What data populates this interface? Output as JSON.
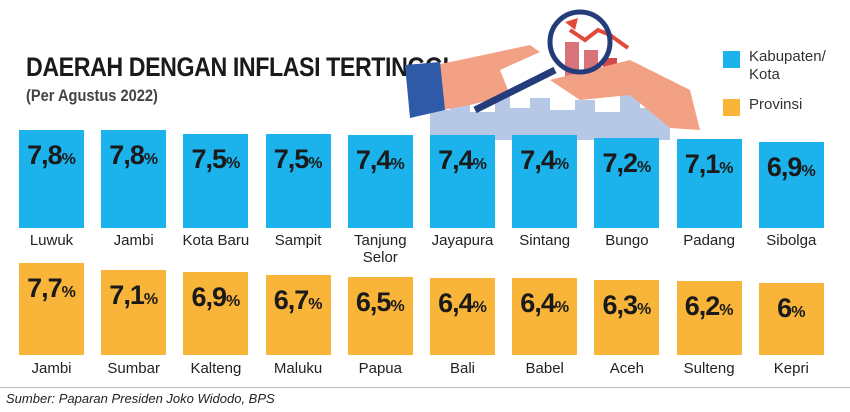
{
  "title": "DAERAH DENGAN INFLASI TERTINGGI",
  "subtitle": "(Per Agustus 2022)",
  "legend": {
    "kabupaten": "Kabupaten/ Kota",
    "provinsi": "Provinsi"
  },
  "source": "Sumber: Paparan Presiden Joko Widodo, BPS",
  "colors": {
    "kabupaten": "#1cb2ec",
    "provinsi": "#f9b43a"
  },
  "chart_data": [
    {
      "type": "bar",
      "series_name": "Kabupaten/Kota",
      "unit": "%",
      "categories": [
        "Luwuk",
        "Jambi",
        "Kota Baru",
        "Sampit",
        "Tanjung Selor",
        "Jayapura",
        "Sintang",
        "Bungo",
        "Padang",
        "Sibolga"
      ],
      "labels": [
        "7,8",
        "7,8",
        "7,5",
        "7,5",
        "7,4",
        "7,4",
        "7,4",
        "7,2",
        "7,1",
        "6,9"
      ],
      "values": [
        7.8,
        7.8,
        7.5,
        7.5,
        7.4,
        7.4,
        7.4,
        7.2,
        7.1,
        6.9
      ]
    },
    {
      "type": "bar",
      "series_name": "Provinsi",
      "unit": "%",
      "categories": [
        "Jambi",
        "Sumbar",
        "Kalteng",
        "Maluku",
        "Papua",
        "Bali",
        "Babel",
        "Aceh",
        "Sulteng",
        "Kepri"
      ],
      "labels": [
        "7,7",
        "7,1",
        "6,9",
        "6,7",
        "6,5",
        "6,4",
        "6,4",
        "6,3",
        "6,2",
        "6"
      ],
      "values": [
        7.7,
        7.1,
        6.9,
        6.7,
        6.5,
        6.4,
        6.4,
        6.3,
        6.2,
        6.0
      ]
    }
  ]
}
